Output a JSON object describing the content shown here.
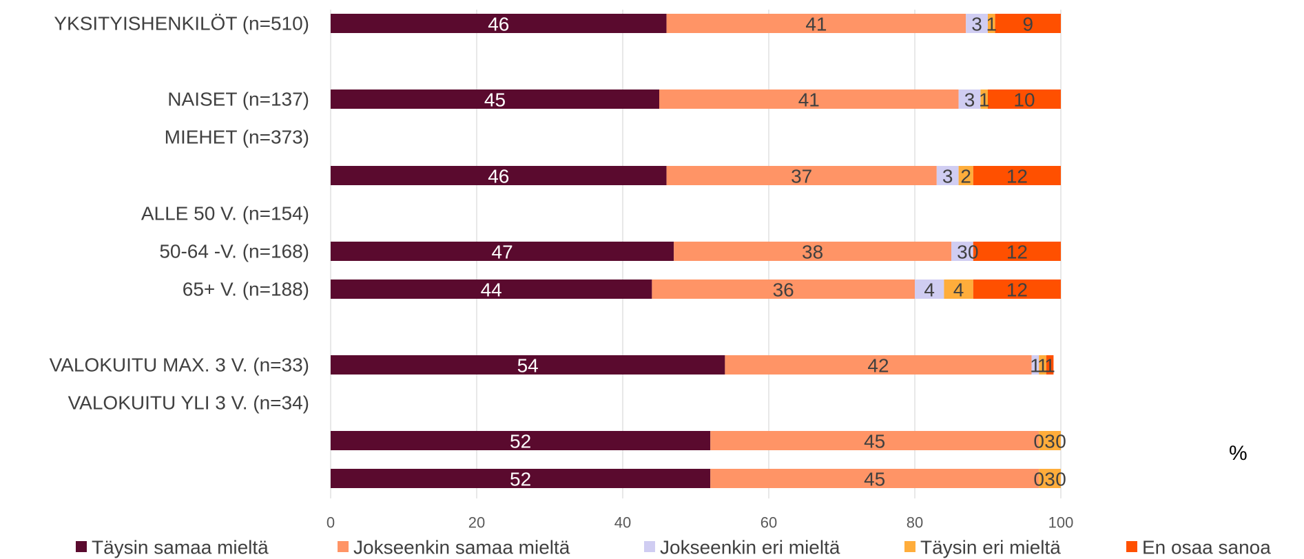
{
  "chart_data": {
    "type": "bar",
    "orientation": "horizontal",
    "stacked": true,
    "x_unit_label": "%",
    "xlim": [
      0,
      100
    ],
    "x_ticks": [
      0,
      20,
      40,
      60,
      80,
      100
    ],
    "grid": "vertical",
    "legend_position": "bottom",
    "category_labels": [
      "YKSITYISHENKILÖT (n=510)",
      "NAISET (n=137)",
      "MIEHET (n=373)",
      "ALLE 50 V. (n=154)",
      "50-64 -V. (n=168)",
      "65+ V. (n=188)",
      "VALOKUITU MAX. 3 V. (n=33)",
      "VALOKUITU YLI 3 V. (n=34)"
    ],
    "series": [
      {
        "name": "Täysin samaa mieltä",
        "color": "#5a0a2e",
        "values": [
          46,
          45,
          46,
          47,
          44,
          54,
          52,
          52
        ],
        "label_color": "#ffffff"
      },
      {
        "name": "Jokseenkin samaa mieltä",
        "color": "#ff9466",
        "values": [
          41,
          41,
          37,
          38,
          36,
          42,
          45,
          45
        ],
        "label_color": "#404040"
      },
      {
        "name": "Jokseenkin eri mieltä",
        "color": "#d0cdf2",
        "values": [
          3,
          3,
          3,
          3,
          4,
          1,
          0,
          0
        ],
        "label_color": "#404040"
      },
      {
        "name": "Täysin eri mieltä",
        "color": "#ffad3b",
        "values": [
          1,
          1,
          2,
          0,
          4,
          1,
          3,
          3
        ],
        "label_color": "#404040"
      },
      {
        "name": "En osaa sanoa",
        "color": "#ff5000",
        "values": [
          9,
          10,
          12,
          12,
          12,
          1,
          0,
          0
        ],
        "label_color": "#404040"
      }
    ]
  }
}
